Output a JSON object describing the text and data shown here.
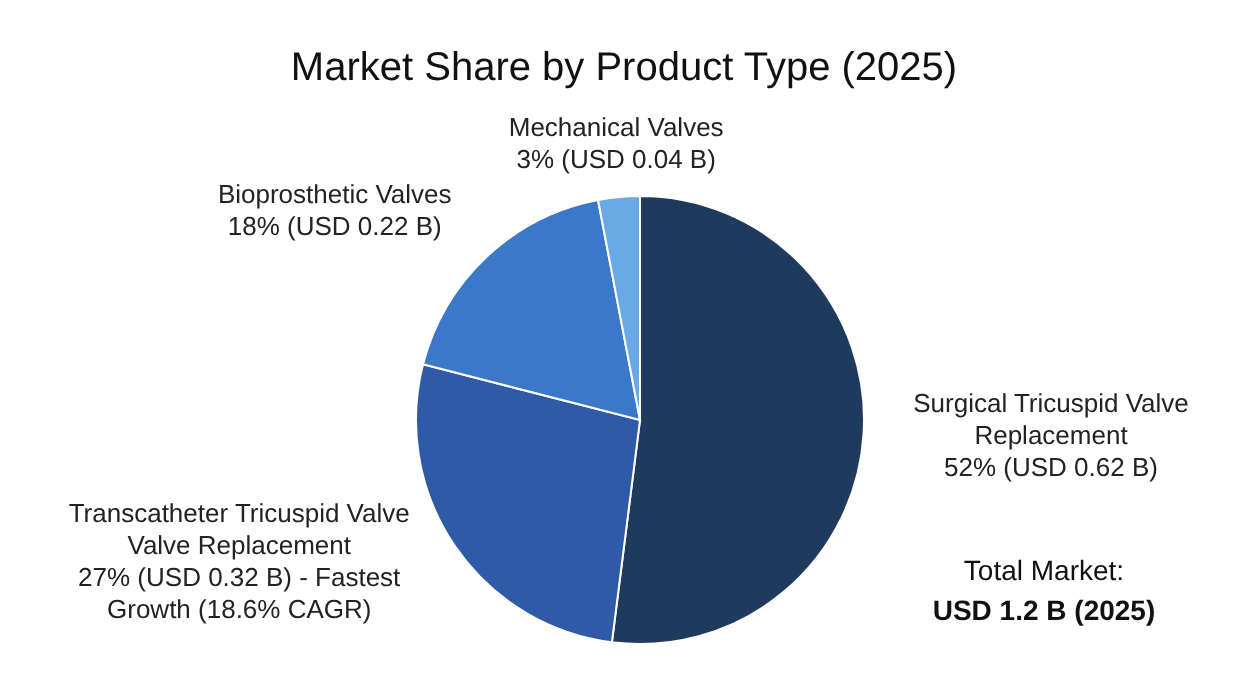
{
  "chart_data": {
    "type": "pie",
    "title": "Market Share by Product Type (2025)",
    "categories": [
      "Surgical Tricuspid Valve Replacement",
      "Transcatheter Tricuspid Valve Valve Replacement",
      "Bioprosthetic Valves",
      "Mechanical Valves"
    ],
    "values": [
      52,
      27,
      18,
      3
    ],
    "value_labels": [
      "52% (USD 0.62 B)",
      "27% (USD 0.32 B) - Fastest Growth (18.6% CAGR)",
      "18% (USD 0.22 B)",
      "3% (USD 0.04 B)"
    ],
    "colors": [
      "#1e3a5c",
      "#2e5aa8",
      "#3b78c9",
      "#6aa8e6"
    ],
    "annotations": [
      "Total Market:",
      "USD 1.2 B (2025)"
    ]
  }
}
